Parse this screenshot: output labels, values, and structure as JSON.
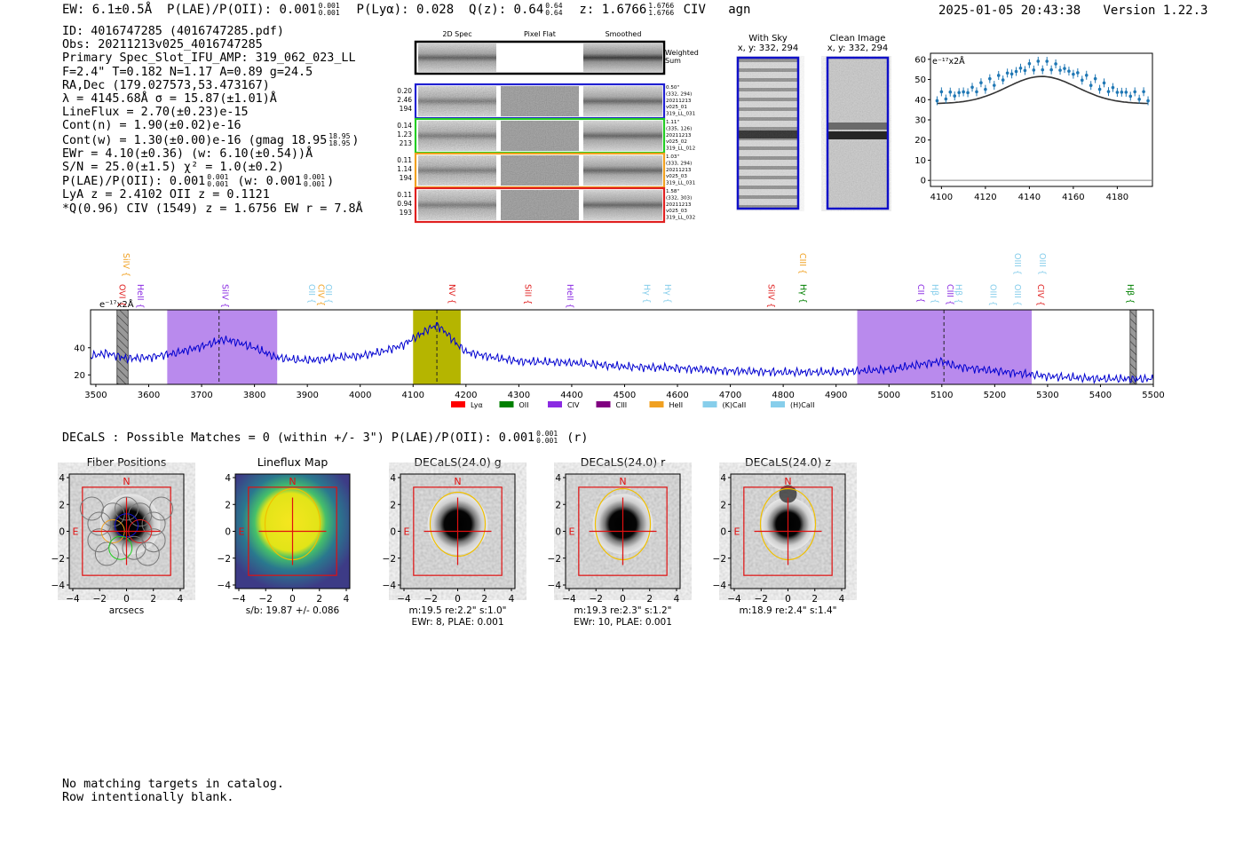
{
  "header": {
    "ew_label": "EW: 6.1±0.5Å",
    "plae_label": "P(LAE)/P(OII): 0.001",
    "plae_hi": "0.001",
    "plae_lo": "0.001",
    "plya_label": "P(Lyα): 0.028",
    "qz_label": "Q(z): 0.64",
    "qz_hi": "0.64",
    "qz_lo": "0.64",
    "z_label": "z: 1.6766",
    "z_hi": "1.6766",
    "z_lo": "1.6766",
    "line": "CIV",
    "class": "agn",
    "datetime": "2025-01-05 20:43:38",
    "version": "Version 1.22.3"
  },
  "info": {
    "id": "ID: 4016747285 (4016747285.pdf)",
    "obs": "Obs: 20211213v025_4016747285",
    "primary": "Primary Spec_Slot_IFU_AMP: 319_062_023_LL",
    "fparams": "F=2.4\"  T=0.182  N=1.17  A=0.89  g=24.5",
    "radec": "RA,Dec (179.027573,53.473167)",
    "lambda": "λ = 4145.68Å  σ = 15.87(±1.01)Å",
    "lineflux": "LineFlux = 2.70(±0.23)e-15",
    "contn": "Cont(n) = 1.90(±0.02)e-16",
    "contw": "Cont(w) = 1.30(±0.00)e-16 (gmag 18.95",
    "contw_hi": "18.95",
    "contw_lo": "18.95",
    "contw_end": ")",
    "ewr": "EWr = 4.10(±0.36) (w: 6.10(±0.54))Å",
    "sn": "S/N = 25.0(±1.5)  χ² = 1.0(±0.2)",
    "plae": "P(LAE)/P(OII): 0.001",
    "plae_hi": "0.001",
    "plae_lo": "0.001",
    "plae_w": "(w: 0.001",
    "plae_w_hi": "0.001",
    "plae_w_lo": "0.001",
    "plae_w_end": ")",
    "lya": "LyA z = 2.4102  OII z = 0.1121",
    "civ": "*Q(0.96) CIV (1549) z = 1.6756  EW r = 7.8Å"
  },
  "cutouts": {
    "col_labels": [
      "2D Spec",
      "Pixel Flat",
      "Smoothed"
    ],
    "weighted_label": [
      "Weighted",
      "Sum"
    ],
    "rows": [
      {
        "left": [
          "0.20",
          "2.46",
          "194"
        ],
        "right": [
          "0.50\"",
          "(332, 294)",
          "20211213",
          "v025_01",
          "319_LL_031"
        ],
        "color": "#1f1fd0"
      },
      {
        "left": [
          "0.14",
          "1.23",
          "213"
        ],
        "right": [
          "1.11\"",
          "(335, 126)",
          "20211213",
          "v025_02",
          "319_LL_012"
        ],
        "color": "#22cc22"
      },
      {
        "left": [
          "0.11",
          "1.14",
          "194"
        ],
        "right": [
          "1.03\"",
          "(333, 294)",
          "20211213",
          "v025_03",
          "319_LL_031"
        ],
        "color": "#f0a020"
      },
      {
        "left": [
          "0.11",
          "0.94",
          "193"
        ],
        "right": [
          "1.58\"",
          "(332, 303)",
          "20211213",
          "v025_03",
          "319_LL_032"
        ],
        "color": "#e02020"
      }
    ],
    "with_sky": [
      "With Sky",
      "x, y: 332, 294"
    ],
    "clean_image": [
      "Clean Image",
      "x, y: 332, 294"
    ]
  },
  "zoom_chart": {
    "type": "scatter",
    "unit_label": "e⁻¹⁷x2Å",
    "x_ticks": [
      "4100",
      "4120",
      "4140",
      "4160",
      "4180"
    ],
    "y_ticks": [
      "0",
      "10",
      "20",
      "30",
      "40",
      "50",
      "60"
    ],
    "xlim": [
      4095,
      4196
    ],
    "ylim": [
      -3,
      63
    ]
  },
  "chart_data": {
    "type": "line",
    "title": "",
    "xlabel": "",
    "ylabel": "e⁻¹⁷x2Å",
    "xlim": [
      3490,
      5500
    ],
    "ylim": [
      13,
      68
    ],
    "x_ticks": [
      "3500",
      "3600",
      "3700",
      "3800",
      "3900",
      "4000",
      "4100",
      "4200",
      "4300",
      "4400",
      "4500",
      "4600",
      "4700",
      "4800",
      "4900",
      "5000",
      "5100",
      "5200",
      "5300",
      "5400",
      "5500"
    ],
    "y_ticks": [
      "20",
      "40"
    ],
    "spectrum_knots": [
      [
        3490,
        34
      ],
      [
        3520,
        36
      ],
      [
        3560,
        32
      ],
      [
        3600,
        33
      ],
      [
        3650,
        36
      ],
      [
        3700,
        41
      ],
      [
        3740,
        46
      ],
      [
        3760,
        45
      ],
      [
        3800,
        40
      ],
      [
        3840,
        33
      ],
      [
        3880,
        31
      ],
      [
        3920,
        31
      ],
      [
        3960,
        33
      ],
      [
        4000,
        34
      ],
      [
        4040,
        37
      ],
      [
        4080,
        42
      ],
      [
        4110,
        49
      ],
      [
        4130,
        54
      ],
      [
        4145,
        57
      ],
      [
        4160,
        52
      ],
      [
        4185,
        42
      ],
      [
        4200,
        37
      ],
      [
        4250,
        33
      ],
      [
        4300,
        30
      ],
      [
        4400,
        29
      ],
      [
        4500,
        26
      ],
      [
        4600,
        25
      ],
      [
        4700,
        23
      ],
      [
        4800,
        22
      ],
      [
        4900,
        22
      ],
      [
        5000,
        24
      ],
      [
        5050,
        27
      ],
      [
        5080,
        29
      ],
      [
        5100,
        30
      ],
      [
        5130,
        26
      ],
      [
        5200,
        23
      ],
      [
        5300,
        19
      ],
      [
        5400,
        17
      ],
      [
        5500,
        17
      ]
    ],
    "shaded_regions": [
      {
        "x0": 3635,
        "x1": 3843,
        "color": "#9b59e6",
        "alpha": 0.7
      },
      {
        "x0": 4100,
        "x1": 4190,
        "color": "#b5b500",
        "alpha": 1.0
      },
      {
        "x0": 4940,
        "x1": 5270,
        "color": "#9b59e6",
        "alpha": 0.7
      }
    ],
    "vlines": [
      {
        "x": 3733,
        "style": "dashed"
      },
      {
        "x": 4145,
        "style": "dashed"
      },
      {
        "x": 5104,
        "style": "dashed"
      }
    ],
    "masks": [
      {
        "x0": 3540,
        "x1": 3561
      },
      {
        "x0": 5456,
        "x1": 5468
      }
    ],
    "line_labels": [
      {
        "name": "SiIV",
        "x": 3545,
        "row": 0,
        "color": "#f0a020"
      },
      {
        "name": "OVI",
        "x": 3538,
        "row": 1,
        "color": "#e02020"
      },
      {
        "name": "HeII",
        "x": 3572,
        "row": 1,
        "color": "#8a2be2"
      },
      {
        "name": "SiIV",
        "x": 3733,
        "row": 1,
        "color": "#8a2be2"
      },
      {
        "name": "OII",
        "x": 3896,
        "row": 1,
        "color": "#87ceeb"
      },
      {
        "name": "CIV",
        "x": 3914,
        "row": 1,
        "color": "#f0a020"
      },
      {
        "name": "OII",
        "x": 3928,
        "row": 1,
        "color": "#87ceeb"
      },
      {
        "name": "NV",
        "x": 4162,
        "row": 1,
        "color": "#e02020"
      },
      {
        "name": "SiII",
        "x": 4305,
        "row": 1,
        "color": "#e02020"
      },
      {
        "name": "HeII",
        "x": 4385,
        "row": 1,
        "color": "#8a2be2"
      },
      {
        "name": "Hγ",
        "x": 4530,
        "row": 1,
        "color": "#87ceeb"
      },
      {
        "name": "Hγ",
        "x": 4570,
        "row": 1,
        "color": "#87ceeb"
      },
      {
        "name": "SiIV",
        "x": 4765,
        "row": 1,
        "color": "#e02020"
      },
      {
        "name": "CIII",
        "x": 4825,
        "row": 0,
        "color": "#f0a020"
      },
      {
        "name": "Hγ",
        "x": 4826,
        "row": 1,
        "color": "#008000"
      },
      {
        "name": "CII",
        "x": 5048,
        "row": 1,
        "color": "#8a2be2"
      },
      {
        "name": "Hβ",
        "x": 5075,
        "row": 1,
        "color": "#87ceeb"
      },
      {
        "name": "CIII",
        "x": 5104,
        "row": 1,
        "color": "#8a2be2"
      },
      {
        "name": "Hβ",
        "x": 5120,
        "row": 1,
        "color": "#87ceeb"
      },
      {
        "name": "OIII",
        "x": 5185,
        "row": 1,
        "color": "#87ceeb"
      },
      {
        "name": "OIII",
        "x": 5231,
        "row": 0,
        "color": "#87ceeb"
      },
      {
        "name": "OIII",
        "x": 5231,
        "row": 1,
        "color": "#87ceeb"
      },
      {
        "name": "OIII",
        "x": 5278,
        "row": 0,
        "color": "#87ceeb"
      },
      {
        "name": "CIV",
        "x": 5275,
        "row": 1,
        "color": "#e02020"
      },
      {
        "name": "Hβ",
        "x": 5445,
        "row": 1,
        "color": "#008000"
      }
    ],
    "legend": [
      {
        "name": "Lyα",
        "color": "#ff0000"
      },
      {
        "name": "OII",
        "color": "#008000"
      },
      {
        "name": "CIV",
        "color": "#8a2be2"
      },
      {
        "name": "CIII",
        "color": "#800080"
      },
      {
        "name": "HeII",
        "color": "#f0a020"
      },
      {
        "name": "(K)CaII",
        "color": "#87ceeb"
      },
      {
        "name": "(H)CaII",
        "color": "#87ceeb"
      }
    ]
  },
  "decals": {
    "line": "DECaLS : Possible Matches = 0 (within +/- 3\")  P(LAE)/P(OII): 0.001",
    "hi": "0.001",
    "lo": "0.001",
    "end": "(r)",
    "panels": [
      {
        "title": "Fiber Positions",
        "caption1": "arcsecs",
        "caption2": ""
      },
      {
        "title": "Lineflux Map",
        "caption1": "s/b: 19.87 +/- 0.086",
        "caption2": ""
      },
      {
        "title": "DECaLS(24.0) g",
        "caption1": "m:19.5  re:2.2\"  s:1.0\"",
        "caption2": "EWr: 8, PLAE: 0.001"
      },
      {
        "title": "DECaLS(24.0) r",
        "caption1": "m:19.3  re:2.3\"  s:1.2\"",
        "caption2": "EWr: 10, PLAE: 0.001"
      },
      {
        "title": "DECaLS(24.0) z",
        "caption1": "m:18.9  re:2.4\"  s:1.4\"",
        "caption2": ""
      }
    ],
    "axis_ticks": [
      "−4",
      "−2",
      "0",
      "2",
      "4"
    ],
    "y_ticks": [
      "4",
      "2",
      "0",
      "−2",
      "−4"
    ],
    "north": "N",
    "east": "E"
  },
  "footer": {
    "line1": "No matching targets in catalog.",
    "line2": "Row intentionally blank."
  }
}
